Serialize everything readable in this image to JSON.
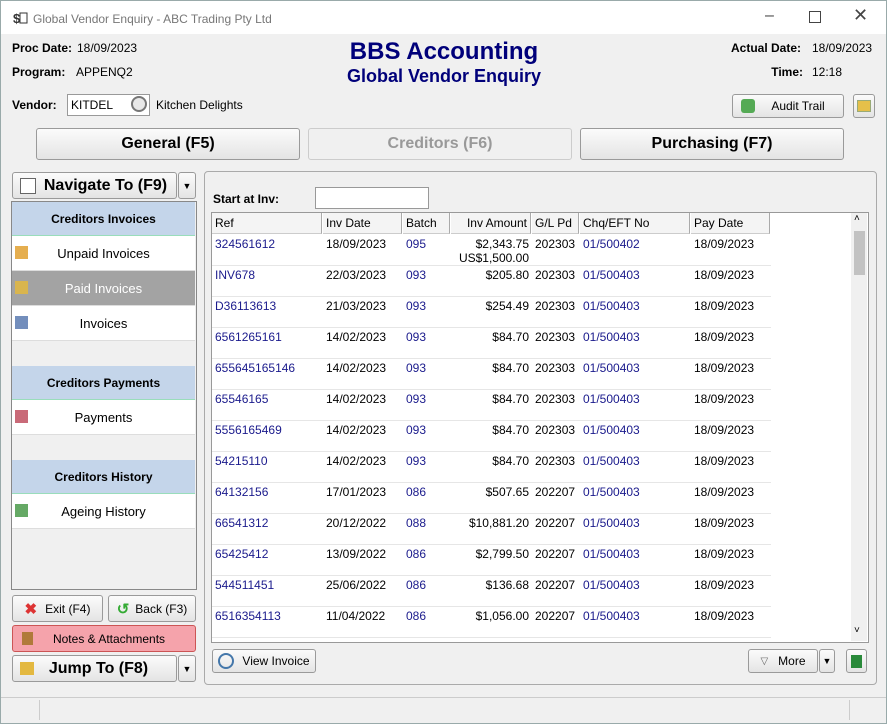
{
  "window": {
    "title": "Global Vendor Enquiry - ABC Trading Pty Ltd"
  },
  "header": {
    "proc_date_label": "Proc Date:",
    "proc_date": "18/09/2023",
    "program_label": "Program:",
    "program": "APPENQ2",
    "app_title": "BBS Accounting",
    "subtitle": "Global Vendor Enquiry",
    "actual_date_label": "Actual Date:",
    "actual_date": "18/09/2023",
    "time_label": "Time:",
    "time": "12:18",
    "vendor_label": "Vendor:",
    "vendor_code": "KITDEL",
    "vendor_name": "Kitchen Delights",
    "audit_trail": "Audit Trail"
  },
  "tabs": [
    "General (F5)",
    "Creditors (F6)",
    "Purchasing (F7)"
  ],
  "nav": {
    "navigate": "Navigate To (F9)",
    "sections": [
      {
        "title": "Creditors Invoices",
        "items": [
          "Unpaid Invoices",
          "Paid Invoices",
          "Invoices"
        ]
      },
      {
        "title": "Creditors Payments",
        "items": [
          "Payments"
        ]
      },
      {
        "title": "Creditors History",
        "items": [
          "Ageing History"
        ]
      }
    ],
    "exit": "Exit (F4)",
    "back": "Back (F3)",
    "notes": "Notes & Attachments",
    "jump": "Jump To (F8)"
  },
  "table": {
    "start_label": "Start at Inv:",
    "columns": [
      "Ref",
      "Inv Date",
      "Batch",
      "Inv Amount",
      "G/L Pd",
      "Chq/EFT No",
      "Pay Date"
    ],
    "rows": [
      {
        "cells": [
          "324561612",
          "18/09/2023",
          "095",
          "$2,343.75",
          "202303",
          "01/500402",
          "18/09/2023"
        ],
        "foreign_amount": "US$1,500.00"
      },
      {
        "cells": [
          "INV678",
          "22/03/2023",
          "093",
          "$205.80",
          "202303",
          "01/500403",
          "18/09/2023"
        ]
      },
      {
        "cells": [
          "D36113613",
          "21/03/2023",
          "093",
          "$254.49",
          "202303",
          "01/500403",
          "18/09/2023"
        ]
      },
      {
        "cells": [
          "6561265161",
          "14/02/2023",
          "093",
          "$84.70",
          "202303",
          "01/500403",
          "18/09/2023"
        ]
      },
      {
        "cells": [
          "655645165146",
          "14/02/2023",
          "093",
          "$84.70",
          "202303",
          "01/500403",
          "18/09/2023"
        ]
      },
      {
        "cells": [
          "65546165",
          "14/02/2023",
          "093",
          "$84.70",
          "202303",
          "01/500403",
          "18/09/2023"
        ]
      },
      {
        "cells": [
          "5556165469",
          "14/02/2023",
          "093",
          "$84.70",
          "202303",
          "01/500403",
          "18/09/2023"
        ]
      },
      {
        "cells": [
          "54215110",
          "14/02/2023",
          "093",
          "$84.70",
          "202303",
          "01/500403",
          "18/09/2023"
        ]
      },
      {
        "cells": [
          "64132156",
          "17/01/2023",
          "086",
          "$507.65",
          "202207",
          "01/500403",
          "18/09/2023"
        ]
      },
      {
        "cells": [
          "66541312",
          "20/12/2022",
          "088",
          "$10,881.20",
          "202207",
          "01/500403",
          "18/09/2023"
        ]
      },
      {
        "cells": [
          "65425412",
          "13/09/2022",
          "086",
          "$2,799.50",
          "202207",
          "01/500403",
          "18/09/2023"
        ]
      },
      {
        "cells": [
          "544511451",
          "25/06/2022",
          "086",
          "$136.68",
          "202207",
          "01/500403",
          "18/09/2023"
        ]
      },
      {
        "cells": [
          "6516354113",
          "11/04/2022",
          "086",
          "$1,056.00",
          "202207",
          "01/500403",
          "18/09/2023"
        ]
      }
    ]
  },
  "buttons": {
    "view_invoice": "View Invoice",
    "more": "More"
  }
}
